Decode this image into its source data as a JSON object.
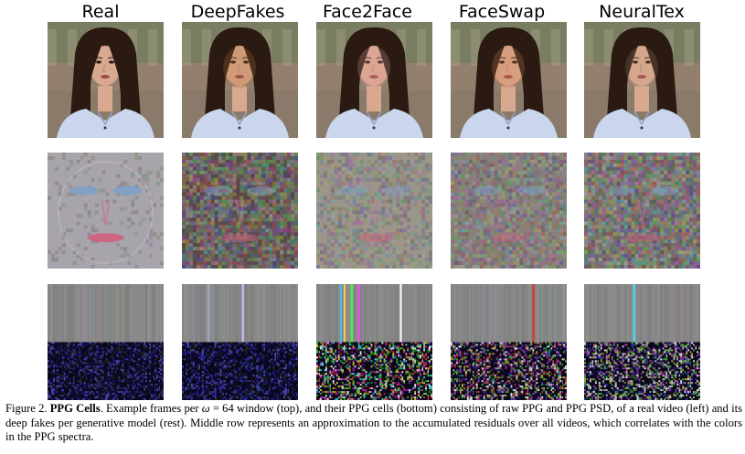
{
  "columns": [
    {
      "key": "real",
      "title": "Real"
    },
    {
      "key": "deepfakes",
      "title": "DeepFakes"
    },
    {
      "key": "face2face",
      "title": "Face2Face"
    },
    {
      "key": "faceswap",
      "title": "FaceSwap"
    },
    {
      "key": "neuraltex",
      "title": "NeuralTex"
    }
  ],
  "caption": {
    "figure_label": "Figure 2.",
    "bold_title": "PPG Cells",
    "text_part1": ". Example frames per ",
    "omega": "ω",
    "text_part2": " = 64 window (top), and their PPG cells (bottom) consisting of raw PPG and PPG PSD, of a real video (left) and its deep fakes per generative model (rest). Middle row represents an approximation to the accumulated residuals over all videos, which correlates with the colors in the PPG spectra."
  },
  "colors": {
    "studio_bg": "#8a7a6a",
    "shirt": "#c9d6ee",
    "hair": "#2a1a12",
    "skin": "#d9a98f",
    "residual_gray": "#8c8c8c",
    "psd_dark": "#0d0820",
    "psd_blue": "#2a2aa0"
  }
}
